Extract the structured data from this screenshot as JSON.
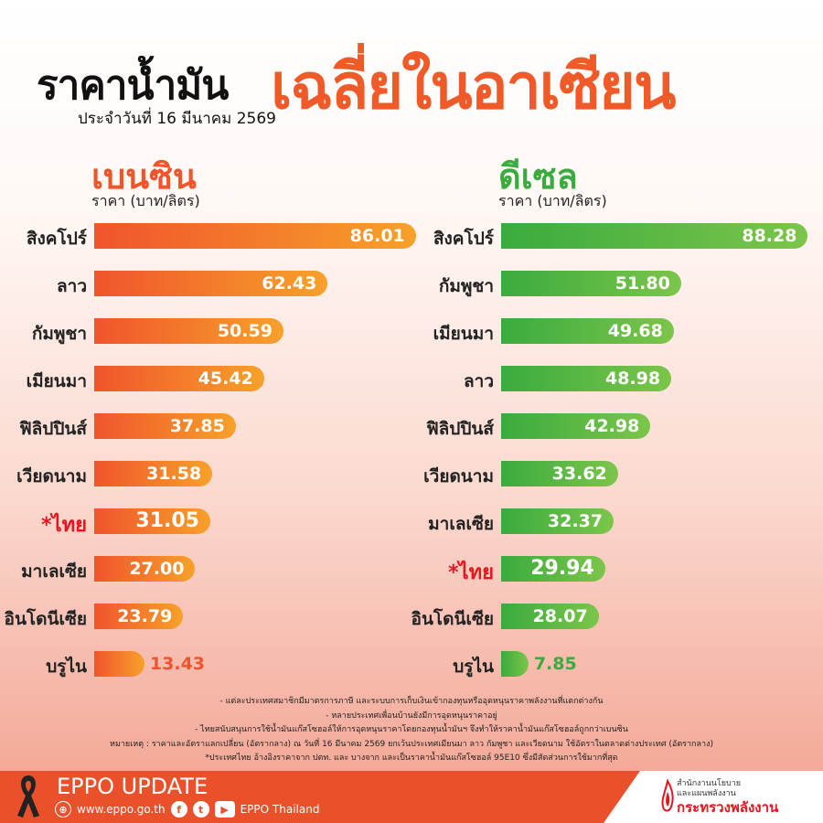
{
  "header": {
    "title_part1": "ราคาน้ำมัน",
    "title_part2": "เฉลี่ยในอาเซียน",
    "subtitle": "ประจำวันที่  16 มีนาคม 2569"
  },
  "chart_data": [
    {
      "type": "bar",
      "orientation": "horizontal",
      "title": "เบนซิน",
      "ylabel": "ราคา (บาท/ลิตร)",
      "color": "#f0542c",
      "highlight_color": "#e8141e",
      "categories": [
        "สิงคโปร์",
        "ลาว",
        "กัมพูชา",
        "เมียนมา",
        "ฟิลิปปินส์",
        "เวียดนาม",
        "*ไทย",
        "มาเลเซีย",
        "อินโดนีเซีย",
        "บรูไน"
      ],
      "values": [
        86.01,
        62.43,
        50.59,
        45.42,
        37.85,
        31.58,
        31.05,
        27.0,
        23.79,
        13.43
      ],
      "labels": [
        "86.01",
        "62.43",
        "50.59",
        "45.42",
        "37.85",
        "31.58",
        "31.05",
        "27.00",
        "23.79",
        "13.43"
      ],
      "highlight_index": 6
    },
    {
      "type": "bar",
      "orientation": "horizontal",
      "title": "ดีเซล",
      "ylabel": "ราคา (บาท/ลิตร)",
      "color": "#3aab3e",
      "highlight_color": "#e8141e",
      "categories": [
        "สิงคโปร์",
        "กัมพูชา",
        "เมียนมา",
        "ลาว",
        "ฟิลิปปินส์",
        "เวียดนาม",
        "มาเลเซีย",
        "*ไทย",
        "อินโดนีเซีย",
        "บรูไน"
      ],
      "values": [
        88.28,
        51.8,
        49.68,
        48.98,
        42.98,
        33.62,
        32.37,
        29.94,
        28.07,
        7.85
      ],
      "labels": [
        "88.28",
        "51.80",
        "49.68",
        "48.98",
        "42.98",
        "33.62",
        "32.37",
        "29.94",
        "28.07",
        "7.85"
      ],
      "highlight_index": 7
    }
  ],
  "notes": [
    "- แต่ละประเทศสมาชิกมีมาตรการภาษี และระบบการเก็บเงินเข้ากองทุนหรืออุดหนุนราคาพลังงานที่แตกต่างกัน",
    "- หลายประเทศเพื่อนบ้านยังมีการอุดหนุนราคาอยู่",
    "- ไทยสนับสนุนการใช้น้ำมันแก๊สโซฮอล์ให้การอุดหนุนราคาโดยกองทุนน้ำมันฯ จึงทำให้ราคาน้ำมันแก๊สโซฮอล์ถูกกว่าเบนซิน",
    "หมายเหตุ : ราคาและอัตราแลกเปลี่ยน (อัตรากลาง) ณ วันที่ 16 มีนาคม 2569 ยกเว้นประเทศเมียนมา ลาว กัมพูชา และเวียดนาม ใช้อัตราในตลาดต่างประเทศ (อัตรากลาง)",
    "*ประเทศไทย อ้างอิงราคาจาก ปตท. และ บางจาก และเป็นราคาน้ำมันแก๊สโซฮอล์ 95E10 ซึ่งมีสัดส่วนการใช้มากที่สุด"
  ],
  "footer": {
    "brand": "EPPO UPDATE",
    "website": "www.eppo.go.th",
    "social": "EPPO Thailand",
    "ministry_line1": "สำนักงานนโยบาย",
    "ministry_line2": "และแผนพลังงาน",
    "ministry_line3": "กระทรวงพลังงาน",
    "icons": [
      "globe-icon",
      "facebook-icon",
      "twitter-icon",
      "youtube-icon",
      "black-ribbon-icon",
      "flame-logo-icon"
    ]
  }
}
